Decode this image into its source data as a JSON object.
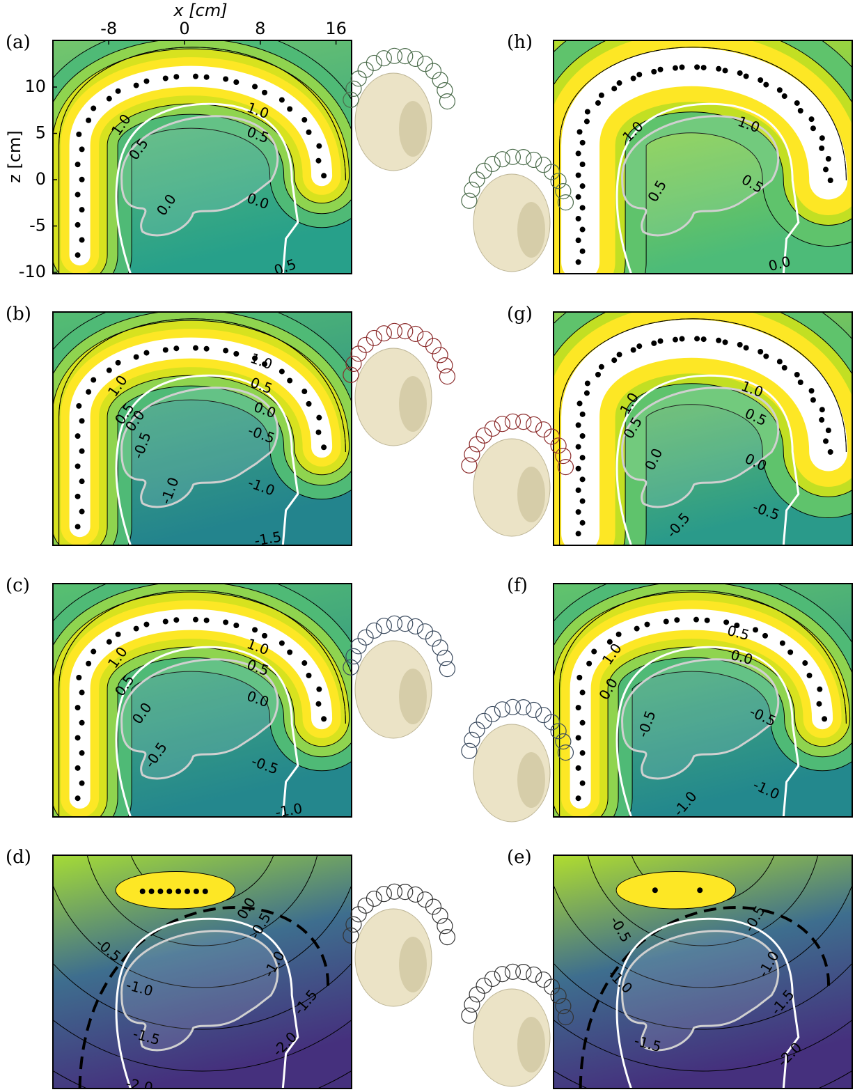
{
  "x_axis": {
    "label": "x [cm]",
    "ticks": [
      -8,
      0,
      8,
      16
    ]
  },
  "z_axis": {
    "label": "z [cm]",
    "ticks": [
      10,
      5,
      0,
      -5,
      -10
    ]
  },
  "panels": [
    {
      "label": "(a)",
      "contour_labels": [
        "1.0",
        "0.5",
        "1.0",
        "0.5",
        "0.0",
        "0.0",
        "0.5"
      ]
    },
    {
      "label": "(b)",
      "contour_labels": [
        "1.0",
        "1.0",
        "0.5",
        "0.5",
        "0.0",
        "0.0",
        "-0.5",
        "-0.5",
        "-1.0",
        "-1.0",
        "-1.5"
      ]
    },
    {
      "label": "(c)",
      "contour_labels": [
        "1.0",
        "1.0",
        "0.5",
        "0.5",
        "0.0",
        "0.0",
        "-0.5",
        "-0.5",
        "-1.0"
      ]
    },
    {
      "label": "(d)",
      "contour_labels": [
        "0.0",
        "-0.5",
        "-0.5",
        "-1.0",
        "-1.0",
        "-1.5",
        "-1.5",
        "-2.0",
        "-2.0"
      ]
    },
    {
      "label": "(e)",
      "contour_labels": [
        "-0.5",
        "-0.5",
        "-1.0",
        "-1.0",
        "-1.5",
        "-1.5",
        "-2.0"
      ]
    },
    {
      "label": "(f)",
      "contour_labels": [
        "0.5",
        "0.0",
        "1.0",
        "0.0",
        "-0.5",
        "-0.5",
        "-1.0",
        "-1.0"
      ]
    },
    {
      "label": "(g)",
      "contour_labels": [
        "1.0",
        "1.0",
        "0.5",
        "0.5",
        "0.0",
        "0.0",
        "-0.5",
        "-0.5"
      ]
    },
    {
      "label": "(h)",
      "contour_labels": [
        "1.0",
        "1.0",
        "0.5",
        "0.5",
        "0.0"
      ]
    }
  ]
}
